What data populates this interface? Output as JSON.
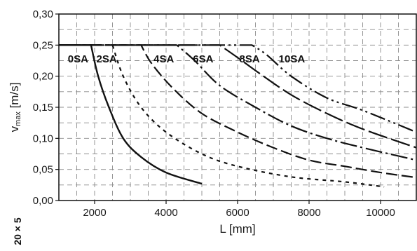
{
  "chart_data": {
    "type": "line",
    "xlabel": "L [mm]",
    "ylabel_main": "v",
    "ylabel_sub": "max",
    "ylabel_unit": " [m/s]",
    "side_label": "20 × 5",
    "xlim": [
      1000,
      11000
    ],
    "ylim": [
      0,
      0.3
    ],
    "xticks": [
      2000,
      4000,
      6000,
      8000,
      10000
    ],
    "yticks": [
      0.0,
      0.05,
      0.1,
      0.15,
      0.2,
      0.25,
      0.3
    ],
    "ytick_labels": [
      "0,00",
      "0,05",
      "0,10",
      "0,15",
      "0,20",
      "0,25",
      "0,30"
    ],
    "grid": true,
    "series": [
      {
        "name": "0SA",
        "label_at": [
          1250,
          0.228
        ],
        "points": [
          [
            1000,
            0.25
          ],
          [
            1900,
            0.25
          ],
          [
            2100,
            0.2
          ],
          [
            2400,
            0.15
          ],
          [
            2800,
            0.1
          ],
          [
            3300,
            0.07
          ],
          [
            4000,
            0.045
          ],
          [
            5000,
            0.027
          ]
        ]
      },
      {
        "name": "2SA",
        "label_at": [
          2050,
          0.228
        ],
        "points": [
          [
            1000,
            0.25
          ],
          [
            2500,
            0.25
          ],
          [
            2800,
            0.2
          ],
          [
            3300,
            0.15
          ],
          [
            4000,
            0.11
          ],
          [
            5000,
            0.075
          ],
          [
            6000,
            0.055
          ],
          [
            7500,
            0.038
          ],
          [
            9000,
            0.03
          ],
          [
            10100,
            0.022
          ]
        ]
      },
      {
        "name": "4SA",
        "label_at": [
          3650,
          0.228
        ],
        "points": [
          [
            1000,
            0.25
          ],
          [
            3300,
            0.25
          ],
          [
            3600,
            0.22
          ],
          [
            4200,
            0.18
          ],
          [
            5000,
            0.14
          ],
          [
            6000,
            0.11
          ],
          [
            7000,
            0.085
          ],
          [
            8000,
            0.065
          ],
          [
            9000,
            0.055
          ],
          [
            10000,
            0.045
          ],
          [
            11000,
            0.037
          ]
        ]
      },
      {
        "name": "6SA",
        "label_at": [
          4750,
          0.228
        ],
        "points": [
          [
            1000,
            0.25
          ],
          [
            4300,
            0.25
          ],
          [
            4800,
            0.225
          ],
          [
            5500,
            0.185
          ],
          [
            6500,
            0.15
          ],
          [
            7500,
            0.12
          ],
          [
            8500,
            0.1
          ],
          [
            9500,
            0.085
          ],
          [
            11000,
            0.065
          ]
        ]
      },
      {
        "name": "8SA",
        "label_at": [
          6050,
          0.228
        ],
        "points": [
          [
            1000,
            0.25
          ],
          [
            5500,
            0.25
          ],
          [
            6000,
            0.23
          ],
          [
            6600,
            0.205
          ],
          [
            7500,
            0.17
          ],
          [
            8500,
            0.14
          ],
          [
            9500,
            0.115
          ],
          [
            11000,
            0.085
          ]
        ]
      },
      {
        "name": "10SA",
        "label_at": [
          7150,
          0.228
        ],
        "points": [
          [
            1000,
            0.25
          ],
          [
            6400,
            0.25
          ],
          [
            6800,
            0.235
          ],
          [
            7500,
            0.2
          ],
          [
            8500,
            0.165
          ],
          [
            9500,
            0.145
          ],
          [
            11000,
            0.11
          ]
        ]
      }
    ]
  }
}
